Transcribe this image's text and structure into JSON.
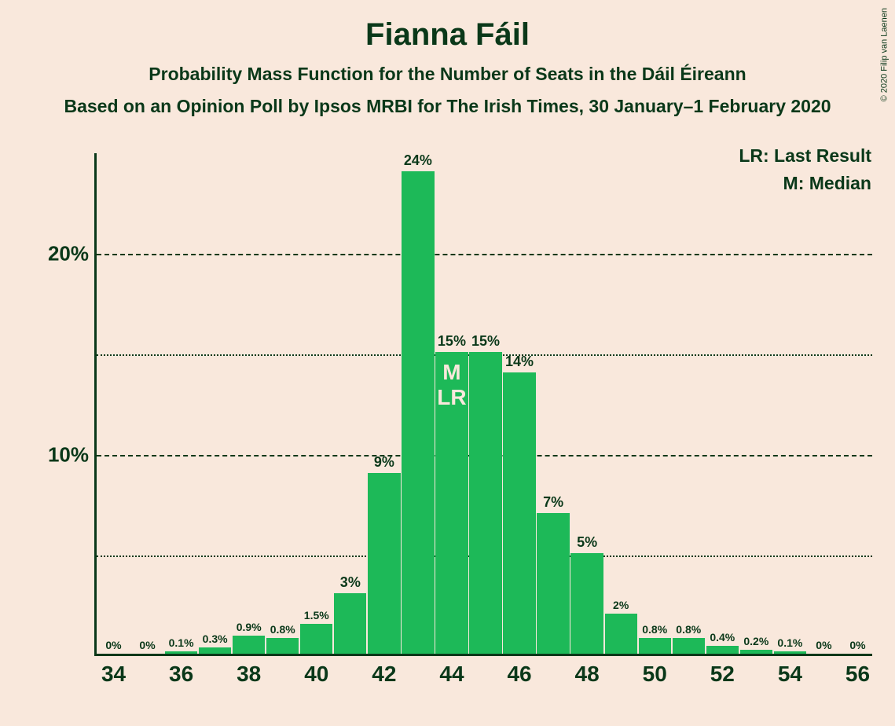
{
  "title": "Fianna Fáil",
  "subtitle1": "Probability Mass Function for the Number of Seats in the Dáil Éireann",
  "subtitle2": "Based on an Opinion Poll by Ipsos MRBI for The Irish Times, 30 January–1 February 2020",
  "legend": {
    "lr": "LR: Last Result",
    "m": "M: Median"
  },
  "copyright": "© 2020 Filip van Laenen",
  "chart": {
    "type": "bar",
    "bar_color": "#1db958",
    "background_color": "#f9e8dc",
    "axis_color": "#0a3819",
    "grid_major_color": "#0a3819",
    "grid_minor_color": "#0a3819",
    "text_color": "#0a3819",
    "median_text_color": "#f9e8dc",
    "title_fontsize": 40,
    "subtitle_fontsize": 23,
    "ytick_fontsize": 26,
    "xtick_fontsize": 28,
    "barlabel_fontsize_small": 14,
    "barlabel_fontsize_large": 18,
    "ylim_max": 25,
    "ytick_major": [
      10,
      20
    ],
    "ytick_minor": [
      5,
      15
    ],
    "ytick_major_labels": [
      "10%",
      "20%"
    ],
    "xticks": [
      34,
      36,
      38,
      40,
      42,
      44,
      46,
      48,
      50,
      52,
      54,
      56
    ],
    "x_min": 34,
    "x_max": 56,
    "bar_width": 0.96,
    "median_x": 44,
    "median_label_top": "M",
    "median_label_bottom": "LR",
    "bars": [
      {
        "x": 34,
        "v": 0,
        "label": "0%"
      },
      {
        "x": 35,
        "v": 0,
        "label": "0%"
      },
      {
        "x": 36,
        "v": 0.1,
        "label": "0.1%"
      },
      {
        "x": 37,
        "v": 0.3,
        "label": "0.3%"
      },
      {
        "x": 38,
        "v": 0.9,
        "label": "0.9%"
      },
      {
        "x": 39,
        "v": 0.8,
        "label": "0.8%"
      },
      {
        "x": 40,
        "v": 1.5,
        "label": "1.5%"
      },
      {
        "x": 41,
        "v": 3,
        "label": "3%"
      },
      {
        "x": 42,
        "v": 9,
        "label": "9%"
      },
      {
        "x": 43,
        "v": 24,
        "label": "24%"
      },
      {
        "x": 44,
        "v": 15,
        "label": "15%"
      },
      {
        "x": 45,
        "v": 15,
        "label": "15%"
      },
      {
        "x": 46,
        "v": 14,
        "label": "14%"
      },
      {
        "x": 47,
        "v": 7,
        "label": "7%"
      },
      {
        "x": 48,
        "v": 5,
        "label": "5%"
      },
      {
        "x": 49,
        "v": 2,
        "label": "2%"
      },
      {
        "x": 50,
        "v": 0.8,
        "label": "0.8%"
      },
      {
        "x": 51,
        "v": 0.8,
        "label": "0.8%"
      },
      {
        "x": 52,
        "v": 0.4,
        "label": "0.4%"
      },
      {
        "x": 53,
        "v": 0.2,
        "label": "0.2%"
      },
      {
        "x": 54,
        "v": 0.1,
        "label": "0.1%"
      },
      {
        "x": 55,
        "v": 0,
        "label": "0%"
      },
      {
        "x": 56,
        "v": 0,
        "label": "0%"
      }
    ]
  }
}
